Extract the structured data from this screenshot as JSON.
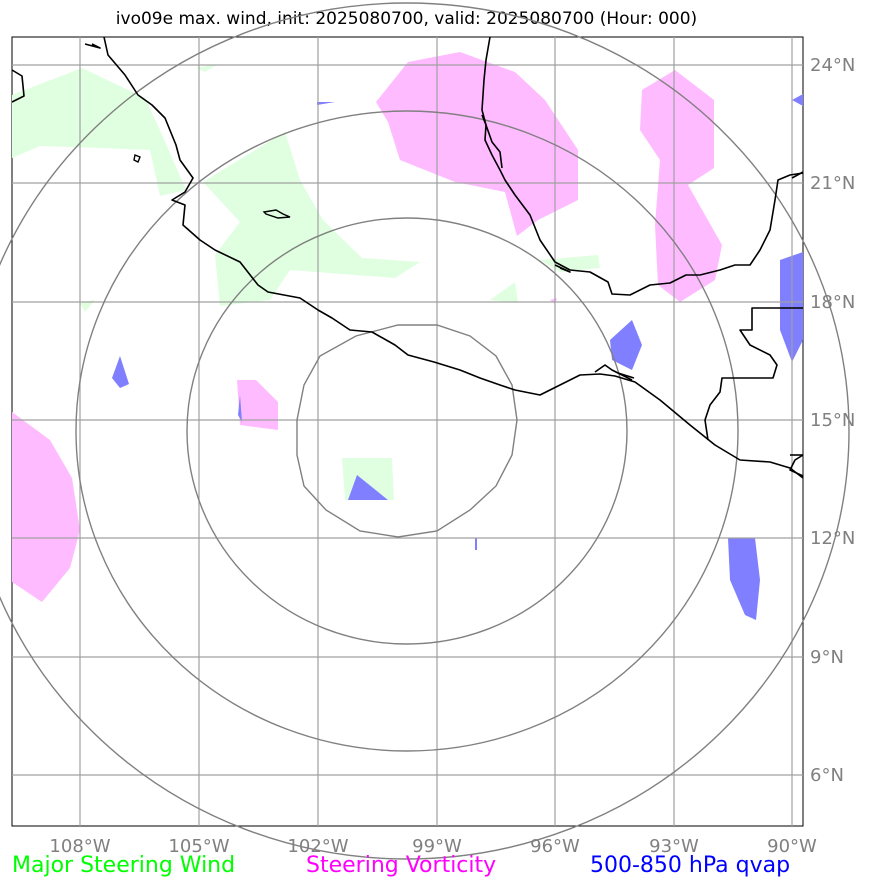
{
  "title": "ivo09e max. wind, init: 2025080700, valid: 2025080700 (Hour: 000)",
  "legend": {
    "wind": "Major Steering Wind",
    "vorticity": "Steering Vorticity",
    "qvap": "500-850 hPa qvap"
  },
  "colors": {
    "wind_fill": "#e0ffe0",
    "vorticity_fill": "#ffbbff",
    "qvap_fill": "#7f7fff",
    "grid": "#a0a0a0",
    "range_rings": "#808080",
    "coast": "#000000",
    "tick_text": "#808080"
  },
  "map": {
    "lon_ticks": [
      "108°W",
      "105°W",
      "102°W",
      "99°W",
      "96°W",
      "93°W",
      "90°W"
    ],
    "lat_ticks": [
      "24°N",
      "21°N",
      "18°N",
      "15°N",
      "12°N",
      "9°N",
      "6°N"
    ],
    "storm_center": "99°W 15°N"
  }
}
